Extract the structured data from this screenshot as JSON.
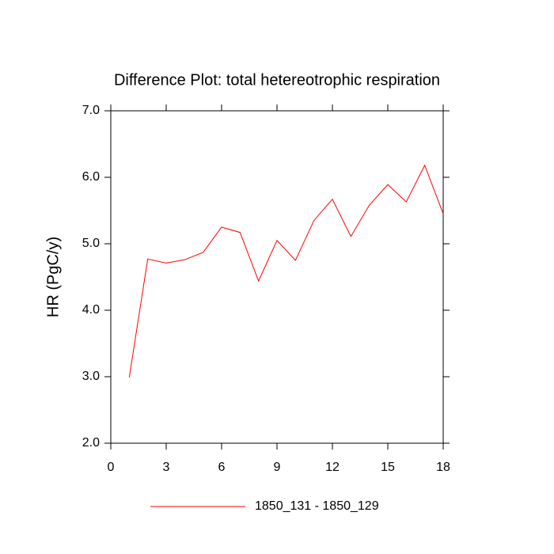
{
  "chart_data": {
    "type": "line",
    "title": "Difference Plot: total hetereotrophic respiration",
    "y_label": "HR  (PgC/y)",
    "x": [
      1,
      2,
      3,
      4,
      5,
      6,
      7,
      8,
      9,
      10,
      11,
      12,
      13,
      14,
      15,
      16,
      17,
      18
    ],
    "series": [
      {
        "name": "1850_131 - 1850_129",
        "color": "#ff0000",
        "values": [
          2.99,
          4.77,
          4.71,
          4.76,
          4.87,
          5.25,
          5.17,
          4.44,
          5.05,
          4.75,
          5.35,
          5.67,
          5.11,
          5.58,
          5.89,
          5.63,
          6.18,
          5.45
        ]
      }
    ],
    "xlim": [
      0,
      18
    ],
    "xticks": [
      0,
      3,
      6,
      9,
      12,
      15,
      18
    ],
    "ylim": [
      2,
      7
    ],
    "yticks": [
      {
        "value": 2,
        "label": "2.0"
      },
      {
        "value": 3,
        "label": "3.0"
      },
      {
        "value": 4,
        "label": "4.0"
      },
      {
        "value": 5,
        "label": "5.0"
      },
      {
        "value": 6,
        "label": "6.0"
      },
      {
        "value": 7,
        "label": "7.0"
      }
    ],
    "grid": false
  }
}
